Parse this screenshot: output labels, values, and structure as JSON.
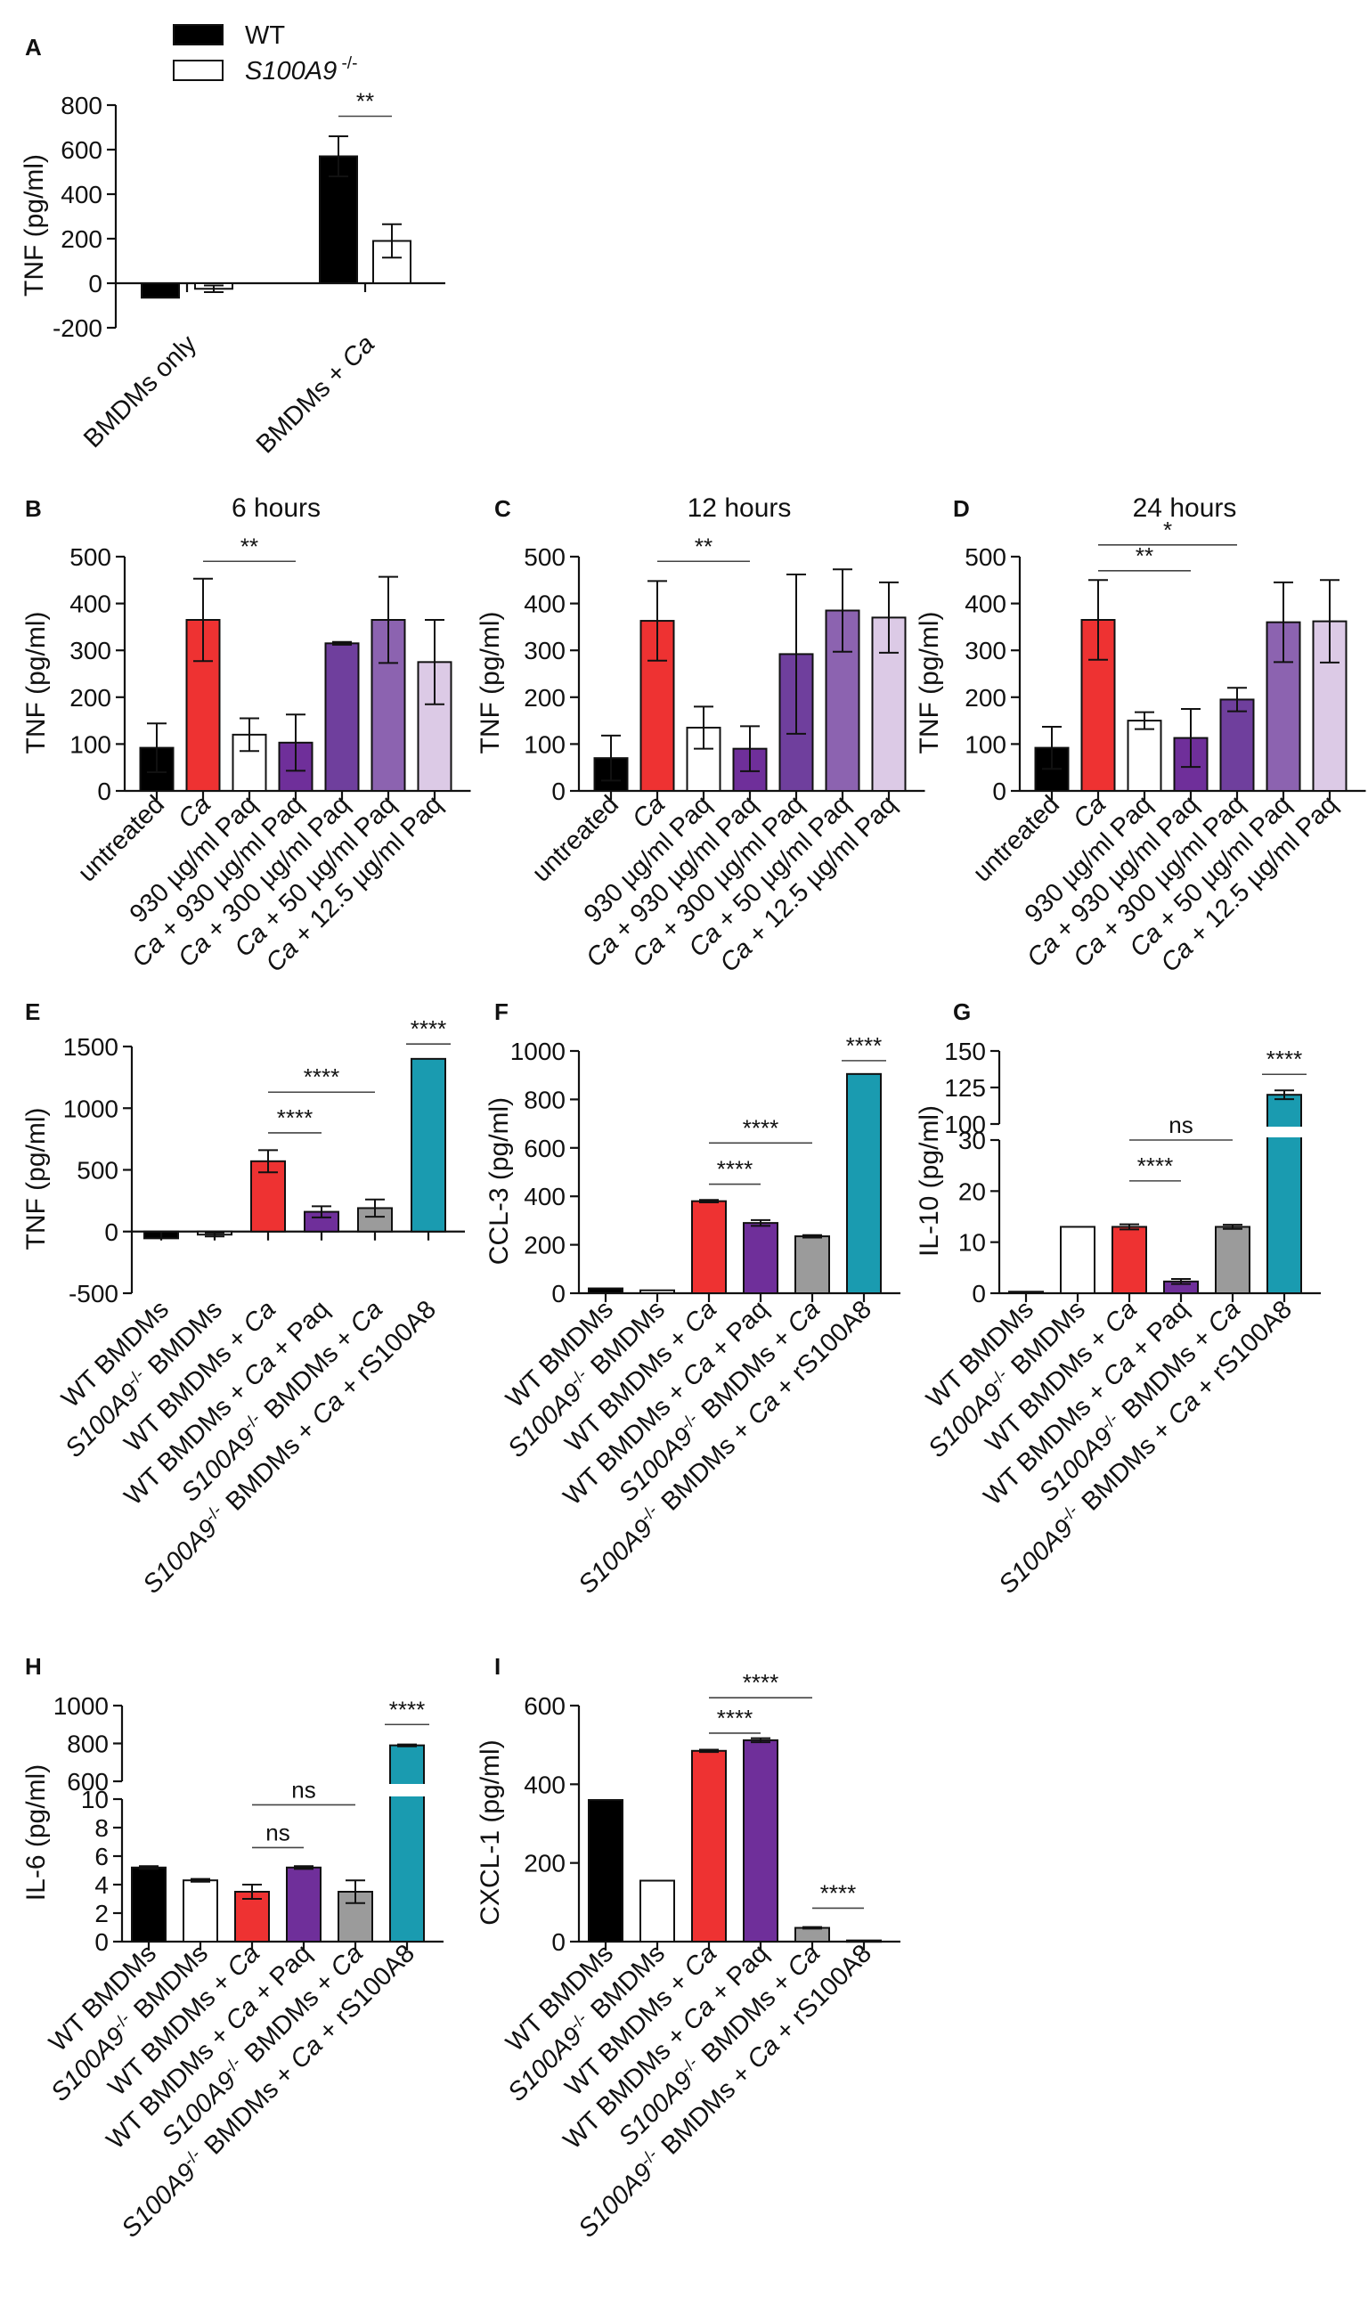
{
  "legend": {
    "items": [
      {
        "label": "WT",
        "fill": "#000000"
      },
      {
        "label": "S100A9",
        "sup": " -/-",
        "fill": "#ffffff",
        "italic": true
      }
    ]
  },
  "chart_data": [
    {
      "panel": "A",
      "type": "bar",
      "title": "",
      "xlabel": "",
      "ylabel": "TNF (pg/ml)",
      "ylim": [
        -200,
        800
      ],
      "yticks": [
        -200,
        0,
        200,
        400,
        600,
        800
      ],
      "categories": [
        "BMDMs only",
        "BMDMs + Ca"
      ],
      "series": [
        {
          "name": "WT",
          "color": "#000000",
          "values": [
            -65,
            570
          ],
          "errors": [
            0,
            90
          ]
        },
        {
          "name": "S100A9 -/-",
          "color": "#ffffff",
          "values": [
            -25,
            190
          ],
          "errors": [
            15,
            75
          ]
        }
      ],
      "significance": [
        {
          "from": 2,
          "to": 3,
          "label": "**",
          "y": 750
        }
      ]
    },
    {
      "panel": "B",
      "type": "bar",
      "title": "6 hours",
      "ylabel": "TNF (pg/ml)",
      "ylim": [
        0,
        500
      ],
      "yticks": [
        0,
        100,
        200,
        300,
        400,
        500
      ],
      "categories": [
        "untreated",
        "Ca",
        "930 µg/ml Paq",
        "Ca + 930 µg/ml Paq",
        "Ca + 300 µg/ml Paq",
        "Ca + 50 µg/ml Paq",
        "Ca + 12.5 µg/ml Paq"
      ],
      "values": [
        92,
        365,
        120,
        103,
        315,
        365,
        275
      ],
      "errors": [
        52,
        88,
        35,
        60,
        3,
        92,
        90
      ],
      "colors": [
        "#000000",
        "#ee3232",
        "#ffffff",
        "#6f2f9a",
        "#6f3f9d",
        "#8c63b0",
        "#dccae6"
      ],
      "significance": [
        {
          "from": 1,
          "to": 3,
          "label": "**",
          "y": 490
        }
      ]
    },
    {
      "panel": "C",
      "type": "bar",
      "title": "12 hours",
      "ylabel": "TNF (pg/ml)",
      "ylim": [
        0,
        500
      ],
      "yticks": [
        0,
        100,
        200,
        300,
        400,
        500
      ],
      "categories": [
        "untreated",
        "Ca",
        "930 µg/ml Paq",
        "Ca + 930 µg/ml Paq",
        "Ca + 300 µg/ml Paq",
        "Ca + 50 µg/ml Paq",
        "Ca + 12.5 µg/ml Paq"
      ],
      "values": [
        70,
        363,
        135,
        90,
        292,
        385,
        370
      ],
      "errors": [
        48,
        85,
        45,
        48,
        170,
        88,
        75
      ],
      "colors": [
        "#000000",
        "#ee3232",
        "#ffffff",
        "#6f2f9a",
        "#6f3f9d",
        "#8c63b0",
        "#dccae6"
      ],
      "significance": [
        {
          "from": 1,
          "to": 3,
          "label": "**",
          "y": 490
        }
      ]
    },
    {
      "panel": "D",
      "type": "bar",
      "title": "24 hours",
      "ylabel": "TNF (pg/ml)",
      "ylim": [
        0,
        500
      ],
      "yticks": [
        0,
        100,
        200,
        300,
        400,
        500
      ],
      "categories": [
        "untreated",
        "Ca",
        "930 µg/ml Paq",
        "Ca + 930 µg/ml Paq",
        "Ca + 300 µg/ml Paq",
        "Ca + 50 µg/ml Paq",
        "Ca + 12.5 µg/ml Paq"
      ],
      "values": [
        92,
        365,
        150,
        113,
        195,
        360,
        362
      ],
      "errors": [
        45,
        85,
        18,
        62,
        25,
        85,
        88
      ],
      "colors": [
        "#000000",
        "#ee3232",
        "#ffffff",
        "#6f2f9a",
        "#6f3f9d",
        "#8c63b0",
        "#dccae6"
      ],
      "significance": [
        {
          "from": 1,
          "to": 3,
          "label": "**",
          "y": 470
        },
        {
          "from": 1,
          "to": 4,
          "label": "*",
          "y": 525
        }
      ]
    },
    {
      "panel": "E",
      "type": "bar",
      "ylabel": "TNF (pg/ml)",
      "ylim": [
        -500,
        1500
      ],
      "yticks": [
        -500,
        0,
        500,
        1000,
        1500
      ],
      "categories": [
        "WT BMDMs",
        "S100A9 -/- BMDMs",
        "WT BMDMs + Ca",
        "WT BMDMs + Ca + Paq",
        "S100A9 -/- BMDMs + Ca",
        "S100A9 -/- BMDMs + Ca + rS100A8"
      ],
      "values": [
        -55,
        -25,
        570,
        160,
        190,
        1400
      ],
      "errors": [
        0,
        15,
        90,
        45,
        70,
        0
      ],
      "colors": [
        "#000000",
        "#ffffff",
        "#ee3232",
        "#6f2f9a",
        "#9b9b9b",
        "#1a9bb0"
      ],
      "significance": [
        {
          "from": 2,
          "to": 3,
          "label": "****",
          "y": 800
        },
        {
          "from": 2,
          "to": 4,
          "label": "****",
          "y": 1130
        },
        {
          "from": 5,
          "to": 5,
          "label": "****",
          "y": 1520
        }
      ]
    },
    {
      "panel": "F",
      "type": "bar",
      "ylabel": "CCL-3 (pg/ml)",
      "ylim": [
        0,
        1000
      ],
      "yticks": [
        0,
        200,
        400,
        600,
        800,
        1000
      ],
      "categories": [
        "WT BMDMs",
        "S100A9 -/- BMDMs",
        "WT BMDMs + Ca",
        "WT BMDMs + Ca + Paq",
        "S100A9 -/- BMDMs + Ca",
        "S100A9 -/- BMDMs + Ca + rS100A8"
      ],
      "values": [
        20,
        12,
        380,
        290,
        235,
        905
      ],
      "errors": [
        0,
        0,
        5,
        12,
        5,
        0
      ],
      "colors": [
        "#000000",
        "#ffffff",
        "#ee3232",
        "#6f2f9a",
        "#9b9b9b",
        "#1a9bb0"
      ],
      "significance": [
        {
          "from": 2,
          "to": 3,
          "label": "****",
          "y": 450
        },
        {
          "from": 2,
          "to": 4,
          "label": "****",
          "y": 620
        },
        {
          "from": 5,
          "to": 5,
          "label": "****",
          "y": 960
        }
      ]
    },
    {
      "panel": "G",
      "type": "bar",
      "ylabel": "IL-10 (pg/ml)",
      "broken_axis": true,
      "ylim_lower": [
        0,
        30
      ],
      "yticks_lower": [
        0,
        10,
        20,
        30
      ],
      "ylim_upper": [
        100,
        150
      ],
      "yticks_upper": [
        100,
        125,
        150
      ],
      "categories": [
        "WT BMDMs",
        "S100A9 -/- BMDMs",
        "WT BMDMs + Ca",
        "WT BMDMs + Ca + Paq",
        "S100A9 -/- BMDMs + Ca",
        "S100A9 -/- BMDMs + Ca + rS100A8"
      ],
      "values": [
        0.3,
        13,
        13,
        2.3,
        13,
        120
      ],
      "errors": [
        0,
        0,
        0.5,
        0.5,
        0.4,
        3
      ],
      "colors": [
        "#000000",
        "#ffffff",
        "#ee3232",
        "#6f2f9a",
        "#9b9b9b",
        "#1a9bb0"
      ],
      "significance": [
        {
          "from": 2,
          "to": 3,
          "label": "****",
          "y": 22,
          "segment": "lower"
        },
        {
          "from": 2,
          "to": 4,
          "label": "ns",
          "y": 30,
          "segment": "lower"
        },
        {
          "from": 5,
          "to": 5,
          "label": "****",
          "y": 134,
          "segment": "upper"
        }
      ]
    },
    {
      "panel": "H",
      "type": "bar",
      "ylabel": "IL-6 (pg/ml)",
      "broken_axis": true,
      "ylim_lower": [
        0,
        10
      ],
      "yticks_lower": [
        0,
        2,
        4,
        6,
        8,
        10
      ],
      "ylim_upper": [
        600,
        1000
      ],
      "yticks_upper": [
        600,
        800,
        1000
      ],
      "categories": [
        "WT BMDMs",
        "S100A9 -/- BMDMs",
        "WT BMDMs + Ca",
        "WT BMDMs + Ca + Paq",
        "S100A9 -/- BMDMs + Ca",
        "S100A9 -/- BMDMs + Ca + rS100A8"
      ],
      "values": [
        5.2,
        4.3,
        3.5,
        5.2,
        3.5,
        790
      ],
      "errors": [
        0.1,
        0.1,
        0.5,
        0.1,
        0.8,
        5
      ],
      "colors": [
        "#000000",
        "#ffffff",
        "#ee3232",
        "#6f2f9a",
        "#9b9b9b",
        "#1a9bb0"
      ],
      "significance": [
        {
          "from": 2,
          "to": 3,
          "label": "ns",
          "y": 6.6,
          "segment": "lower"
        },
        {
          "from": 2,
          "to": 4,
          "label": "ns",
          "y": 9.6,
          "segment": "lower"
        },
        {
          "from": 5,
          "to": 5,
          "label": "****",
          "y": 900,
          "segment": "upper"
        }
      ]
    },
    {
      "panel": "I",
      "type": "bar",
      "ylabel": "CXCL-1 (pg/ml)",
      "ylim": [
        0,
        600
      ],
      "yticks": [
        0,
        200,
        400,
        600
      ],
      "categories": [
        "WT BMDMs",
        "S100A9 -/- BMDMs",
        "WT BMDMs + Ca",
        "WT BMDMs + Ca + Paq",
        "S100A9 -/- BMDMs + Ca",
        "S100A9 -/- BMDMs + Ca + rS100A8"
      ],
      "values": [
        360,
        155,
        485,
        512,
        35,
        3
      ],
      "errors": [
        0,
        0,
        3,
        5,
        2,
        0
      ],
      "colors": [
        "#000000",
        "#ffffff",
        "#ee3232",
        "#6f2f9a",
        "#9b9b9b",
        "#1a9bb0"
      ],
      "significance": [
        {
          "from": 2,
          "to": 3,
          "label": "****",
          "y": 530
        },
        {
          "from": 2,
          "to": 4,
          "label": "****",
          "y": 620
        },
        {
          "from": 4,
          "to": 5,
          "label": "****",
          "y": 85
        }
      ]
    }
  ]
}
